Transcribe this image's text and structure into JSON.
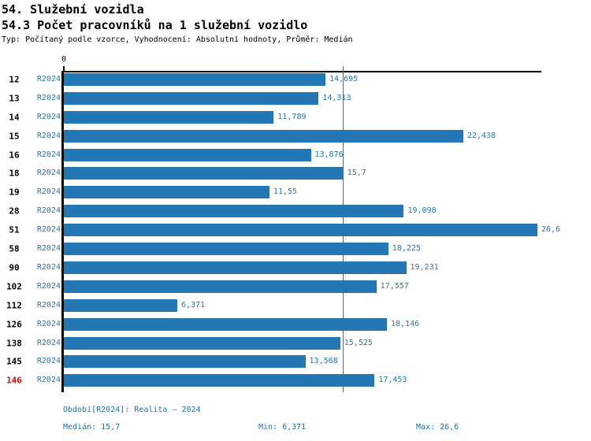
{
  "header": {
    "title": "54. Služební vozidla",
    "subtitle": "54.3 Počet pracovníků na 1 služební vozidlo",
    "meta": "Typ: Počítaný podle vzorce, Vyhodnocení: Absolutní hodnoty, Průměr: Medián"
  },
  "axis": {
    "zero_label": "0"
  },
  "chart_data": {
    "type": "bar",
    "orientation": "horizontal",
    "title": "54.3 Počet pracovníků na 1 služební vozidlo",
    "categories": [
      "12",
      "13",
      "14",
      "15",
      "16",
      "18",
      "19",
      "28",
      "51",
      "58",
      "90",
      "102",
      "112",
      "126",
      "138",
      "145",
      "146"
    ],
    "series": [
      {
        "name": "R2024",
        "values": [
          14.695,
          14.313,
          11.789,
          22.438,
          13.876,
          15.7,
          11.55,
          19.098,
          26.6,
          18.225,
          19.231,
          17.557,
          6.371,
          18.146,
          15.525,
          13.568,
          17.453
        ]
      }
    ],
    "value_labels": [
      "14,695",
      "14,313",
      "11,789",
      "22,438",
      "13,876",
      "15,7",
      "11,55",
      "19,098",
      "26,6",
      "18,225",
      "19,231",
      "17,557",
      "6,371",
      "18,146",
      "15,525",
      "13,568",
      "17,453"
    ],
    "xlim": [
      0,
      26.95
    ],
    "median": 15.7,
    "highlighted_category": "146",
    "bar_color": "#2377b5",
    "highlight_color": "#e30000",
    "grid": false,
    "legend_position": "none"
  },
  "footer": {
    "period": "Období[R2024]: Realita – 2024",
    "median": "Medián: 15,7",
    "min": "Min: 6,371",
    "max": "Max: 26,6"
  }
}
